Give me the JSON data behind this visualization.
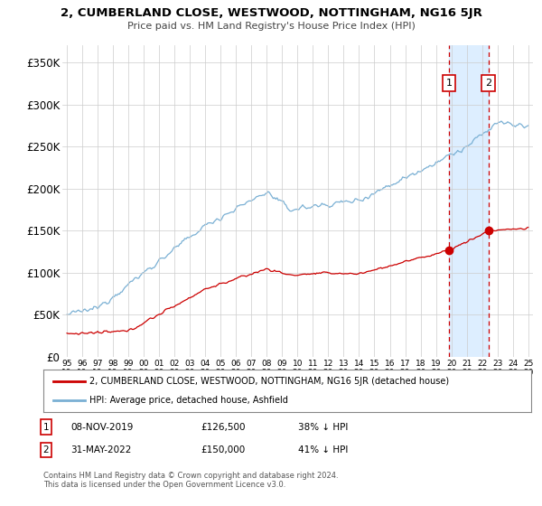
{
  "title": "2, CUMBERLAND CLOSE, WESTWOOD, NOTTINGHAM, NG16 5JR",
  "subtitle": "Price paid vs. HM Land Registry's House Price Index (HPI)",
  "legend_line1": "2, CUMBERLAND CLOSE, WESTWOOD, NOTTINGHAM, NG16 5JR (detached house)",
  "legend_line2": "HPI: Average price, detached house, Ashfield",
  "annotation1_date": "08-NOV-2019",
  "annotation1_price": "£126,500",
  "annotation1_hpi": "38% ↓ HPI",
  "annotation2_date": "31-MAY-2022",
  "annotation2_price": "£150,000",
  "annotation2_hpi": "41% ↓ HPI",
  "footnote": "Contains HM Land Registry data © Crown copyright and database right 2024.\nThis data is licensed under the Open Government Licence v3.0.",
  "property_color": "#cc0000",
  "hpi_color": "#7ab0d4",
  "vline_color": "#cc0000",
  "shade_color": "#ddeeff",
  "annotation_box_color": "#cc0000",
  "background_color": "#ffffff",
  "grid_color": "#cccccc",
  "ylim": [
    0,
    370000
  ],
  "yticks": [
    0,
    50000,
    100000,
    150000,
    200000,
    250000,
    300000,
    350000
  ],
  "sale1_x": 2019.85,
  "sale1_y": 126500,
  "sale2_x": 2022.42,
  "sale2_y": 150000,
  "xmin": 1994.7,
  "xmax": 2025.3
}
